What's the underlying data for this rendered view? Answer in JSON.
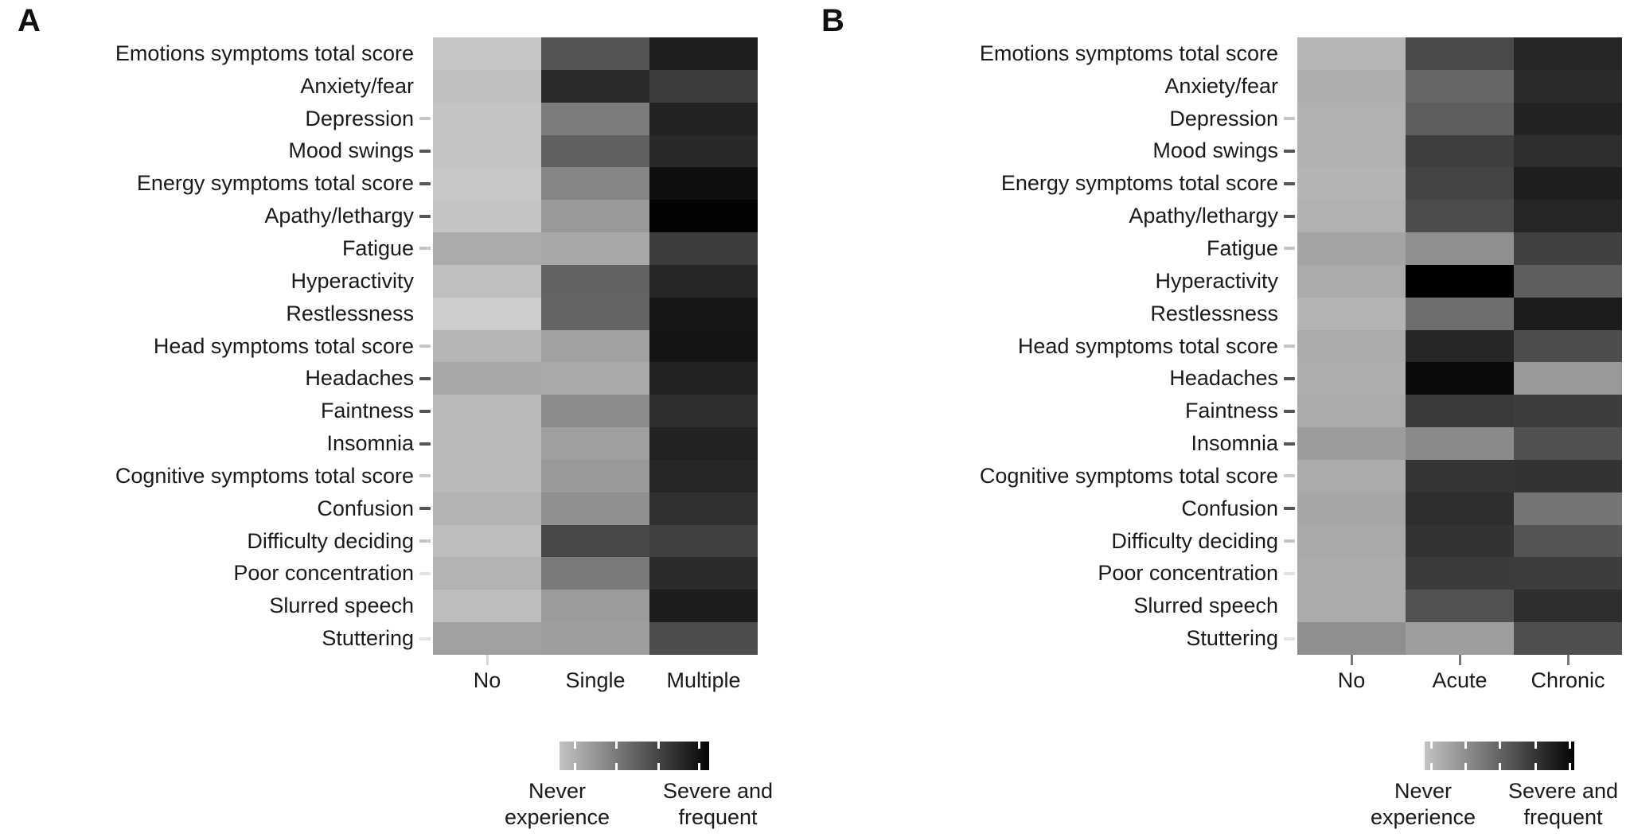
{
  "panels": [
    {
      "letter": "A",
      "columns": [
        "No",
        "Single",
        "Multiple"
      ],
      "rows": [
        "Emotions symptoms total score",
        "Anxiety/fear",
        "Depression",
        "Mood swings",
        "Energy symptoms total score",
        "Apathy/lethargy",
        "Fatigue",
        "Hyperactivity",
        "Restlessness",
        "Head symptoms total score",
        "Headaches",
        "Faintness",
        "Insomnia",
        "Cognitive symptoms total score",
        "Confusion",
        "Difficulty deciding",
        "Poor concentration",
        "Slurred speech",
        "Stuttering"
      ],
      "row_tick_colors": [
        "",
        "",
        "#c6c6c6",
        "#555555",
        "#555555",
        "#555555",
        "#c6c6c6",
        "",
        "",
        "#c6c6c6",
        "#555555",
        "#555555",
        "#555555",
        "#cccccc",
        "#555555",
        "#c6c6c6",
        "#e3e3e3",
        "",
        "#e3e3e3"
      ],
      "x_tick_colors": [
        "#d9d9d9",
        "",
        ""
      ],
      "cells": [
        [
          "#c6c6c6",
          "#555555",
          "#1f1f1f"
        ],
        [
          "#bfbfbf",
          "#2b2b2b",
          "#3d3d3d"
        ],
        [
          "#c4c4c4",
          "#7d7d7d",
          "#222222"
        ],
        [
          "#c4c4c4",
          "#606060",
          "#292929"
        ],
        [
          "#c7c7c7",
          "#858585",
          "#0f0f0f"
        ],
        [
          "#c4c4c4",
          "#999999",
          "#030303"
        ],
        [
          "#ababab",
          "#a8a8a8",
          "#3d3d3d"
        ],
        [
          "#bfbfbf",
          "#636363",
          "#262626"
        ],
        [
          "#cdcdcd",
          "#646464",
          "#161616"
        ],
        [
          "#b6b6b6",
          "#a1a1a1",
          "#151515"
        ],
        [
          "#a8a8a8",
          "#a9a9a9",
          "#222222"
        ],
        [
          "#bababa",
          "#8c8c8c",
          "#2e2e2e"
        ],
        [
          "#bababa",
          "#9f9f9f",
          "#222222"
        ],
        [
          "#bababa",
          "#999999",
          "#262626"
        ],
        [
          "#b3b3b3",
          "#909090",
          "#303030"
        ],
        [
          "#bdbdbd",
          "#484848",
          "#404040"
        ],
        [
          "#b3b3b3",
          "#7a7a7a",
          "#2b2b2b"
        ],
        [
          "#bdbdbd",
          "#9b9b9b",
          "#1c1c1c"
        ],
        [
          "#a1a1a1",
          "#9e9e9e",
          "#4d4d4d"
        ]
      ],
      "legend": {
        "left_line1": "Never",
        "left_line2": "experience",
        "right_line1": "Severe and",
        "right_line2": "frequent",
        "gradient_start": "#c3c3c3",
        "gradient_end": "#040404",
        "tick_percents": [
          10,
          38,
          66,
          93
        ]
      }
    },
    {
      "letter": "B",
      "columns": [
        "No",
        "Acute",
        "Chronic"
      ],
      "rows": [
        "Emotions symptoms total score",
        "Anxiety/fear",
        "Depression",
        "Mood swings",
        "Energy symptoms total score",
        "Apathy/lethargy",
        "Fatigue",
        "Hyperactivity",
        "Restlessness",
        "Head symptoms total score",
        "Headaches",
        "Faintness",
        "Insomnia",
        "Cognitive symptoms total score",
        "Confusion",
        "Difficulty deciding",
        "Poor concentration",
        "Slurred speech",
        "Stuttering"
      ],
      "row_tick_colors": [
        "",
        "",
        "#c6c6c6",
        "#555555",
        "#555555",
        "#555555",
        "#c6c6c6",
        "",
        "",
        "#c6c6c6",
        "#555555",
        "#555555",
        "#555555",
        "#cccccc",
        "#555555",
        "#c6c6c6",
        "#e3e3e3",
        "",
        "#e3e3e3"
      ],
      "x_tick_colors": [
        "#787878",
        "#787878",
        "#787878"
      ],
      "cells": [
        [
          "#b5b5b5",
          "#4a4a4a",
          "#262626"
        ],
        [
          "#aeaeae",
          "#666666",
          "#2b2b2b"
        ],
        [
          "#b1b1b1",
          "#5e5e5e",
          "#232323"
        ],
        [
          "#b1b1b1",
          "#3f3f3f",
          "#2e2e2e"
        ],
        [
          "#b4b4b4",
          "#444444",
          "#1e1e1e"
        ],
        [
          "#b1b1b1",
          "#4c4c4c",
          "#262626"
        ],
        [
          "#a4a4a4",
          "#8f8f8f",
          "#404040"
        ],
        [
          "#ababab",
          "#000000",
          "#5e5e5e"
        ],
        [
          "#b4b4b4",
          "#6e6e6e",
          "#1c1c1c"
        ],
        [
          "#ababab",
          "#262626",
          "#4d4d4d"
        ],
        [
          "#aeaeae",
          "#0a0a0a",
          "#999999"
        ],
        [
          "#ababab",
          "#3a3a3a",
          "#3d3d3d"
        ],
        [
          "#9c9c9c",
          "#8a8a8a",
          "#515151"
        ],
        [
          "#ababab",
          "#343434",
          "#333333"
        ],
        [
          "#a6a6a6",
          "#2e2e2e",
          "#757575"
        ],
        [
          "#a9a9a9",
          "#333333",
          "#555555"
        ],
        [
          "#ababab",
          "#3b3b3b",
          "#3d3d3d"
        ],
        [
          "#ababab",
          "#525252",
          "#2e2e2e"
        ],
        [
          "#8f8f8f",
          "#9e9e9e",
          "#4f4f4f"
        ]
      ],
      "legend": {
        "left_line1": "Never",
        "left_line2": "experience",
        "right_line1": "Severe and",
        "right_line2": "frequent",
        "gradient_start": "#c3c3c3",
        "gradient_end": "#040404",
        "tick_percents": [
          4,
          27,
          50,
          74,
          97
        ]
      }
    }
  ],
  "chart_data": [
    {
      "type": "heatmap",
      "title": "A",
      "xlabel": "",
      "ylabel": "",
      "columns": [
        "No",
        "Single",
        "Multiple"
      ],
      "rows": [
        "Emotions symptoms total score",
        "Anxiety/fear",
        "Depression",
        "Mood swings",
        "Energy symptoms total score",
        "Apathy/lethargy",
        "Fatigue",
        "Hyperactivity",
        "Restlessness",
        "Head symptoms total score",
        "Headaches",
        "Faintness",
        "Insomnia",
        "Cognitive symptoms total score",
        "Confusion",
        "Difficulty deciding",
        "Poor concentration",
        "Slurred speech",
        "Stuttering"
      ],
      "values_scale": "0 = never experience (light), 1 = severe and frequent (black)",
      "values": [
        [
          0.22,
          0.67,
          0.88
        ],
        [
          0.25,
          0.83,
          0.76
        ],
        [
          0.23,
          0.51,
          0.87
        ],
        [
          0.23,
          0.62,
          0.84
        ],
        [
          0.22,
          0.48,
          0.94
        ],
        [
          0.23,
          0.4,
          0.99
        ],
        [
          0.33,
          0.34,
          0.76
        ],
        [
          0.25,
          0.61,
          0.85
        ],
        [
          0.2,
          0.61,
          0.91
        ],
        [
          0.29,
          0.37,
          0.92
        ],
        [
          0.34,
          0.34,
          0.87
        ],
        [
          0.27,
          0.45,
          0.82
        ],
        [
          0.27,
          0.38,
          0.87
        ],
        [
          0.27,
          0.4,
          0.85
        ],
        [
          0.3,
          0.44,
          0.81
        ],
        [
          0.26,
          0.72,
          0.75
        ],
        [
          0.3,
          0.52,
          0.83
        ],
        [
          0.26,
          0.39,
          0.89
        ],
        [
          0.37,
          0.38,
          0.7
        ]
      ],
      "legend": {
        "min_label": "Never experience",
        "max_label": "Severe and frequent",
        "position": "bottom",
        "colormap": "light-gray to black"
      },
      "grid": false
    },
    {
      "type": "heatmap",
      "title": "B",
      "xlabel": "",
      "ylabel": "",
      "columns": [
        "No",
        "Acute",
        "Chronic"
      ],
      "rows": [
        "Emotions symptoms total score",
        "Anxiety/fear",
        "Depression",
        "Mood swings",
        "Energy symptoms total score",
        "Apathy/lethargy",
        "Fatigue",
        "Hyperactivity",
        "Restlessness",
        "Head symptoms total score",
        "Headaches",
        "Faintness",
        "Insomnia",
        "Cognitive symptoms total score",
        "Confusion",
        "Difficulty deciding",
        "Poor concentration",
        "Slurred speech",
        "Stuttering"
      ],
      "values_scale": "0 = never experience (light), 1 = severe and frequent (black)",
      "values": [
        [
          0.29,
          0.71,
          0.85
        ],
        [
          0.32,
          0.6,
          0.83
        ],
        [
          0.31,
          0.63,
          0.86
        ],
        [
          0.31,
          0.75,
          0.82
        ],
        [
          0.29,
          0.73,
          0.88
        ],
        [
          0.31,
          0.7,
          0.85
        ],
        [
          0.36,
          0.44,
          0.75
        ],
        [
          0.33,
          1.0,
          0.63
        ],
        [
          0.29,
          0.57,
          0.89
        ],
        [
          0.33,
          0.85,
          0.7
        ],
        [
          0.32,
          0.96,
          0.4
        ],
        [
          0.33,
          0.77,
          0.76
        ],
        [
          0.39,
          0.46,
          0.68
        ],
        [
          0.33,
          0.8,
          0.8
        ],
        [
          0.35,
          0.82,
          0.54
        ],
        [
          0.34,
          0.8,
          0.67
        ],
        [
          0.33,
          0.77,
          0.76
        ],
        [
          0.33,
          0.68,
          0.82
        ],
        [
          0.44,
          0.38,
          0.69
        ]
      ],
      "legend": {
        "min_label": "Never experience",
        "max_label": "Severe and frequent",
        "position": "bottom",
        "colormap": "light-gray to black"
      },
      "grid": false
    }
  ]
}
